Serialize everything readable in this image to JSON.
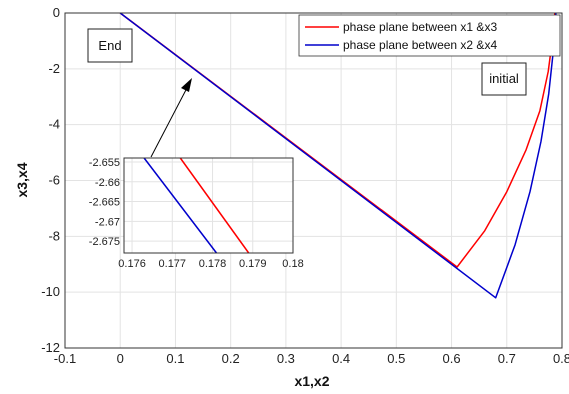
{
  "chart_data": {
    "type": "line",
    "xlabel": "x1,x2",
    "ylabel": "x3,x4",
    "xlim": [
      -0.1,
      0.8
    ],
    "ylim": [
      -12,
      0
    ],
    "xticks": [
      "-0.1",
      "0",
      "0.1",
      "0.2",
      "0.3",
      "0.4",
      "0.5",
      "0.6",
      "0.7",
      "0.8"
    ],
    "yticks": [
      "0",
      "-2",
      "-4",
      "-6",
      "-8",
      "-10",
      "-12"
    ],
    "grid": true,
    "legend_position": "top-right",
    "series": [
      {
        "name": "phase plane between x1 &x3",
        "color": "#ff0000",
        "points": [
          [
            0,
            0
          ],
          [
            0.61,
            -9.1
          ],
          [
            0.66,
            -7.8
          ],
          [
            0.7,
            -6.4
          ],
          [
            0.735,
            -4.9
          ],
          [
            0.76,
            -3.5
          ],
          [
            0.775,
            -2.1
          ],
          [
            0.783,
            -0.9
          ],
          [
            0.787,
            0
          ]
        ]
      },
      {
        "name": "phase plane between x2 &x4",
        "color": "#0000cc",
        "points": [
          [
            0,
            0
          ],
          [
            0.68,
            -10.2
          ],
          [
            0.715,
            -8.3
          ],
          [
            0.742,
            -6.4
          ],
          [
            0.762,
            -4.6
          ],
          [
            0.776,
            -2.9
          ],
          [
            0.784,
            -1.4
          ],
          [
            0.788,
            -0.3
          ],
          [
            0.789,
            0
          ]
        ]
      }
    ],
    "annotations": [
      "End",
      "initial"
    ],
    "inset": {
      "xlim": [
        0.1758,
        0.18
      ],
      "ylim": [
        -2.678,
        -2.654
      ],
      "xticks": [
        "0.176",
        "0.177",
        "0.178",
        "0.179",
        "0.18"
      ],
      "yticks": [
        "-2.655",
        "-2.66",
        "-2.665",
        "-2.67",
        "-2.675"
      ],
      "series": [
        {
          "color": "#ff0000",
          "points": [
            [
              0.1772,
              -2.654
            ],
            [
              0.1789,
              -2.678
            ]
          ]
        },
        {
          "color": "#0000cc",
          "points": [
            [
              0.1763,
              -2.654
            ],
            [
              0.1781,
              -2.678
            ]
          ]
        }
      ]
    }
  }
}
